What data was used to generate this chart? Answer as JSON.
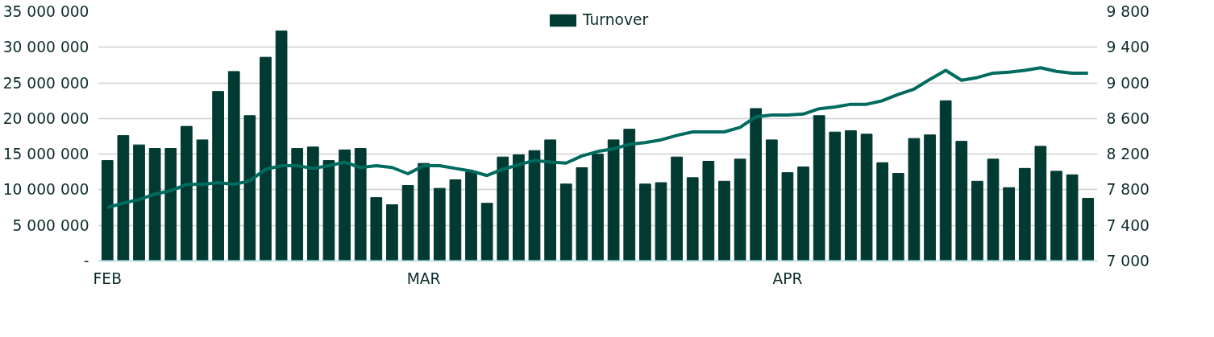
{
  "chart_data": {
    "type": "bar",
    "categories": [
      "FEB",
      null,
      null,
      null,
      null,
      null,
      null,
      null,
      null,
      null,
      null,
      null,
      null,
      null,
      null,
      null,
      null,
      null,
      null,
      null,
      "MAR",
      null,
      null,
      null,
      null,
      null,
      null,
      null,
      null,
      null,
      null,
      null,
      null,
      null,
      null,
      null,
      null,
      null,
      null,
      null,
      null,
      null,
      null,
      "APR",
      null,
      null,
      null,
      null,
      null,
      null,
      null,
      null,
      null,
      null,
      null,
      null,
      null,
      null,
      null,
      null,
      null,
      null,
      null
    ],
    "series": [
      {
        "name": "Turnover",
        "color": "#003a33",
        "values": [
          14100000,
          17600000,
          16300000,
          15800000,
          15800000,
          18900000,
          17000000,
          23800000,
          26600000,
          20400000,
          28600000,
          32300000,
          15800000,
          16000000,
          14100000,
          15600000,
          15800000,
          8900000,
          7900000,
          10600000,
          13700000,
          10200000,
          11400000,
          12500000,
          8100000,
          14600000,
          14900000,
          15500000,
          17000000,
          10800000,
          13100000,
          15000000,
          17000000,
          18500000,
          10800000,
          11000000,
          14600000,
          11700000,
          14000000,
          11200000,
          14300000,
          21400000,
          17000000,
          12400000,
          13200000,
          20400000,
          18100000,
          18300000,
          17800000,
          13800000,
          12300000,
          17200000,
          17700000,
          22500000,
          16800000,
          11200000,
          14300000,
          10300000,
          13000000,
          16100000,
          12600000,
          12100000,
          8800000
        ]
      },
      {
        "type": "line",
        "axis": "y2",
        "color": "#006b5e",
        "values": [
          7600,
          7650,
          7690,
          7750,
          7790,
          7860,
          7860,
          7880,
          7860,
          7900,
          8030,
          8070,
          8070,
          8040,
          8070,
          8110,
          8050,
          8070,
          8050,
          7980,
          8070,
          8070,
          8040,
          8010,
          7960,
          8030,
          8080,
          8130,
          8110,
          8100,
          8180,
          8230,
          8260,
          8310,
          8330,
          8360,
          8410,
          8450,
          8450,
          8450,
          8500,
          8620,
          8640,
          8640,
          8650,
          8710,
          8730,
          8760,
          8760,
          8800,
          8870,
          8930,
          9040,
          9140,
          9030,
          9060,
          9110,
          9120,
          9140,
          9170,
          9130,
          9110,
          9110
        ]
      }
    ],
    "ylim": [
      0,
      35000000
    ],
    "yticks": [
      {
        "value": 0,
        "label": "-"
      },
      {
        "value": 5000000,
        "label": "5 000 000"
      },
      {
        "value": 10000000,
        "label": "10 000 000"
      },
      {
        "value": 15000000,
        "label": "15 000 000"
      },
      {
        "value": 20000000,
        "label": "20 000 000"
      },
      {
        "value": 25000000,
        "label": "25 000 000"
      },
      {
        "value": 30000000,
        "label": "30 000 000"
      },
      {
        "value": 35000000,
        "label": "35 000 000"
      }
    ],
    "y2lim": [
      7000,
      9800
    ],
    "y2ticks": [
      {
        "value": 7000,
        "label": "7 000"
      },
      {
        "value": 7400,
        "label": "7 400"
      },
      {
        "value": 7800,
        "label": "7 800"
      },
      {
        "value": 8200,
        "label": "8 200"
      },
      {
        "value": 8600,
        "label": "8 600"
      },
      {
        "value": 9000,
        "label": "9 000"
      },
      {
        "value": 9400,
        "label": "9 400"
      },
      {
        "value": 9800,
        "label": "9 800"
      }
    ],
    "grid": "y",
    "legend": "top"
  }
}
